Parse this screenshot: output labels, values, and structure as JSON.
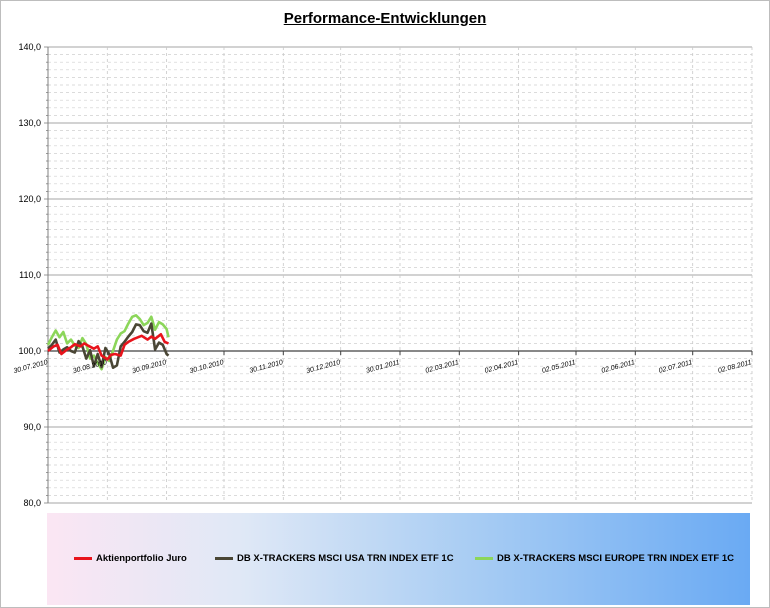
{
  "title": "Performance-Entwicklungen",
  "chart_data": {
    "type": "line",
    "ylim": [
      80,
      140
    ],
    "yticks": [
      "80,0",
      "90,0",
      "100,0",
      "110,0",
      "120,0",
      "130,0",
      "140,0"
    ],
    "ytick_values": [
      80,
      90,
      100,
      110,
      120,
      130,
      140
    ],
    "xlim": [
      "2010-07-30",
      "2011-08-02"
    ],
    "xticks": [
      "30.07.2010",
      "30.08.2010",
      "30.09.2010",
      "30.10.2010",
      "30.11.2010",
      "30.12.2010",
      "30.01.2011",
      "02.03.2011",
      "02.04.2011",
      "02.05.2011",
      "02.06.2011",
      "02.07.2011",
      "02.08.2011"
    ],
    "xtick_dates": [
      "2010-07-30",
      "2010-08-30",
      "2010-09-30",
      "2010-10-30",
      "2010-11-30",
      "2010-12-30",
      "2011-01-30",
      "2011-03-02",
      "2011-04-02",
      "2011-05-02",
      "2011-06-02",
      "2011-07-02",
      "2011-08-02"
    ],
    "xaxis_crosses_at": 100,
    "grid": true,
    "legend_position": "bottom",
    "series": [
      {
        "name": "Aktienportfolio Juro",
        "color": "#e8141c",
        "x": [
          "2010-07-30",
          "2010-08-02",
          "2010-08-04",
          "2010-08-06",
          "2010-08-09",
          "2010-08-11",
          "2010-08-13",
          "2010-08-16",
          "2010-08-18",
          "2010-08-20",
          "2010-08-23",
          "2010-08-25",
          "2010-08-27",
          "2010-08-30",
          "2010-09-01",
          "2010-09-03",
          "2010-09-06",
          "2010-09-08",
          "2010-09-10",
          "2010-09-13",
          "2010-09-15",
          "2010-09-17",
          "2010-09-20",
          "2010-09-22",
          "2010-09-24",
          "2010-09-27",
          "2010-09-29",
          "2010-10-01"
        ],
        "y": [
          100.0,
          100.6,
          100.8,
          99.6,
          100.2,
          100.5,
          100.9,
          100.6,
          101.0,
          100.7,
          100.3,
          100.6,
          99.4,
          98.9,
          99.5,
          99.6,
          99.4,
          100.8,
          101.2,
          101.6,
          101.8,
          102.0,
          101.5,
          101.9,
          101.6,
          102.2,
          101.2,
          101.0
        ]
      },
      {
        "name": "DB X-TRACKERS MSCI USA TRN INDEX ETF 1C",
        "color": "#4a4635",
        "x": [
          "2010-07-30",
          "2010-08-01",
          "2010-08-03",
          "2010-08-05",
          "2010-08-07",
          "2010-08-09",
          "2010-08-11",
          "2010-08-13",
          "2010-08-15",
          "2010-08-17",
          "2010-08-19",
          "2010-08-21",
          "2010-08-23",
          "2010-08-25",
          "2010-08-27",
          "2010-08-29",
          "2010-08-31",
          "2010-09-02",
          "2010-09-04",
          "2010-09-06",
          "2010-09-08",
          "2010-09-10",
          "2010-09-12",
          "2010-09-14",
          "2010-09-16",
          "2010-09-18",
          "2010-09-20",
          "2010-09-22",
          "2010-09-24",
          "2010-09-26",
          "2010-09-28",
          "2010-09-30",
          "2010-10-01"
        ],
        "y": [
          100.3,
          100.8,
          101.5,
          99.8,
          100.2,
          100.5,
          100.0,
          99.8,
          101.3,
          100.6,
          99.0,
          100.1,
          98.0,
          99.6,
          97.9,
          100.4,
          99.6,
          97.8,
          98.1,
          100.6,
          101.2,
          101.9,
          102.5,
          103.5,
          103.4,
          102.6,
          102.4,
          103.6,
          100.2,
          101.1,
          100.8,
          99.6,
          99.4
        ]
      },
      {
        "name": "DB X-TRACKERS MSCI EUROPE TRN INDEX ETF 1C",
        "color": "#8cd65a",
        "x": [
          "2010-07-30",
          "2010-08-01",
          "2010-08-03",
          "2010-08-05",
          "2010-08-07",
          "2010-08-09",
          "2010-08-11",
          "2010-08-13",
          "2010-08-15",
          "2010-08-17",
          "2010-08-19",
          "2010-08-21",
          "2010-08-23",
          "2010-08-25",
          "2010-08-27",
          "2010-08-29",
          "2010-08-31",
          "2010-09-02",
          "2010-09-04",
          "2010-09-06",
          "2010-09-08",
          "2010-09-10",
          "2010-09-12",
          "2010-09-14",
          "2010-09-16",
          "2010-09-18",
          "2010-09-20",
          "2010-09-22",
          "2010-09-24",
          "2010-09-26",
          "2010-09-28",
          "2010-09-30",
          "2010-10-01"
        ],
        "y": [
          100.8,
          101.8,
          102.7,
          101.8,
          102.5,
          101.0,
          101.5,
          100.7,
          100.4,
          101.7,
          100.9,
          99.0,
          99.4,
          98.4,
          97.6,
          99.2,
          98.7,
          100.0,
          101.5,
          102.3,
          102.6,
          103.6,
          104.5,
          104.7,
          104.2,
          103.4,
          103.7,
          104.5,
          102.8,
          103.8,
          103.5,
          102.9,
          101.8
        ]
      }
    ]
  }
}
